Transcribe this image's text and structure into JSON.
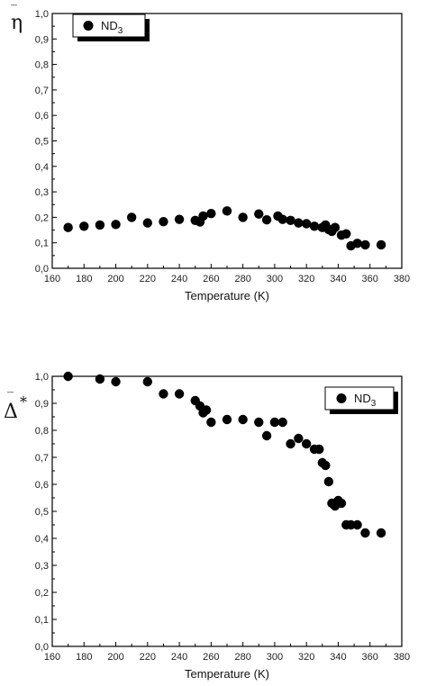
{
  "chart_data": [
    {
      "type": "scatter",
      "xlabel": "Temperature (K)",
      "ylabel_symbol": "η",
      "ylabel_bar": "‾",
      "xlim": [
        160,
        380
      ],
      "ylim": [
        0.0,
        1.0
      ],
      "xticks": [
        "160",
        "180",
        "200",
        "220",
        "240",
        "260",
        "280",
        "300",
        "320",
        "340",
        "360",
        "380"
      ],
      "yticks": [
        "0,0",
        "0,1",
        "0,2",
        "0,3",
        "0,4",
        "0,5",
        "0,6",
        "0,7",
        "0,8",
        "0,9",
        "1,0"
      ],
      "legend": {
        "label": "ND",
        "subscript": "3",
        "placement": "top-left"
      },
      "series": [
        {
          "name": "ND3",
          "color": "#000000",
          "x": [
            170,
            180,
            190,
            200,
            210,
            220,
            230,
            240,
            250,
            253,
            255,
            260,
            270,
            280,
            290,
            295,
            302,
            305,
            310,
            315,
            320,
            325,
            330,
            332,
            334,
            336,
            338,
            342,
            345,
            348,
            352,
            357,
            367
          ],
          "y": [
            0.16,
            0.165,
            0.17,
            0.172,
            0.2,
            0.178,
            0.183,
            0.192,
            0.188,
            0.182,
            0.205,
            0.215,
            0.225,
            0.2,
            0.213,
            0.19,
            0.205,
            0.192,
            0.188,
            0.178,
            0.175,
            0.165,
            0.16,
            0.17,
            0.152,
            0.145,
            0.16,
            0.13,
            0.135,
            0.088,
            0.098,
            0.092,
            0.092
          ]
        }
      ]
    },
    {
      "type": "scatter",
      "xlabel": "Temperature (K)",
      "ylabel_symbol": "Δ",
      "ylabel_bar": "‾",
      "ylabel_star": "*",
      "xlim": [
        160,
        380
      ],
      "ylim": [
        0.0,
        1.0
      ],
      "xticks": [
        "160",
        "180",
        "200",
        "220",
        "240",
        "260",
        "280",
        "300",
        "320",
        "340",
        "360",
        "380"
      ],
      "yticks": [
        "0,0",
        "0,1",
        "0,2",
        "0,3",
        "0,4",
        "0,5",
        "0,6",
        "0,7",
        "0,8",
        "0,9",
        "1,0"
      ],
      "legend": {
        "label": "ND",
        "subscript": "3",
        "placement": "top-right"
      },
      "series": [
        {
          "name": "ND3",
          "color": "#000000",
          "x": [
            170,
            190,
            200,
            220,
            230,
            240,
            250,
            253,
            255,
            257,
            260,
            270,
            280,
            290,
            295,
            300,
            305,
            310,
            315,
            320,
            325,
            328,
            330,
            332,
            334,
            336,
            338,
            340,
            342,
            345,
            348,
            352,
            357,
            367
          ],
          "y": [
            1.0,
            0.99,
            0.98,
            0.98,
            0.935,
            0.935,
            0.91,
            0.89,
            0.865,
            0.875,
            0.83,
            0.84,
            0.84,
            0.83,
            0.78,
            0.83,
            0.83,
            0.75,
            0.77,
            0.75,
            0.73,
            0.73,
            0.68,
            0.67,
            0.61,
            0.53,
            0.52,
            0.54,
            0.53,
            0.45,
            0.45,
            0.45,
            0.42,
            0.42
          ]
        }
      ]
    }
  ]
}
